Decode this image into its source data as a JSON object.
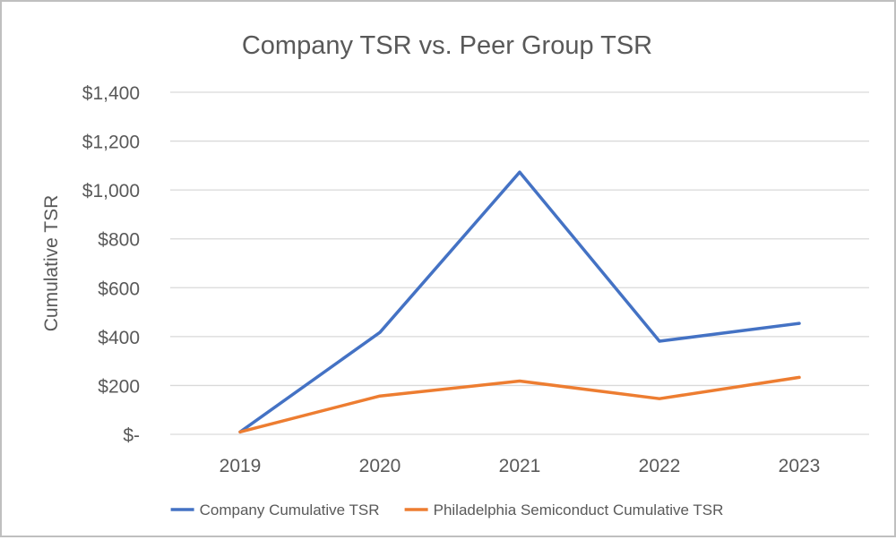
{
  "chart_data": {
    "type": "line",
    "title": "Company TSR vs. Peer Group TSR",
    "xlabel": "",
    "ylabel": "Cumulative TSR",
    "categories": [
      "2019",
      "2020",
      "2021",
      "2022",
      "2023"
    ],
    "ylim": [
      0,
      1400
    ],
    "yticks": [
      0,
      200,
      400,
      600,
      800,
      1000,
      1200,
      1400
    ],
    "ytick_labels": [
      "$-",
      "$200",
      "$400",
      "$600",
      "$800",
      "$1,000",
      "$1,200",
      "$1,400"
    ],
    "grid": true,
    "legend_position": "bottom",
    "series": [
      {
        "name": "Company Cumulative TSR",
        "color": "#4472c4",
        "values": [
          10,
          417,
          1073,
          381,
          454
        ]
      },
      {
        "name": "Philadelphia Semiconduct Cumulative TSR",
        "color": "#ed7d31",
        "values": [
          10,
          157,
          218,
          146,
          233
        ]
      }
    ]
  }
}
